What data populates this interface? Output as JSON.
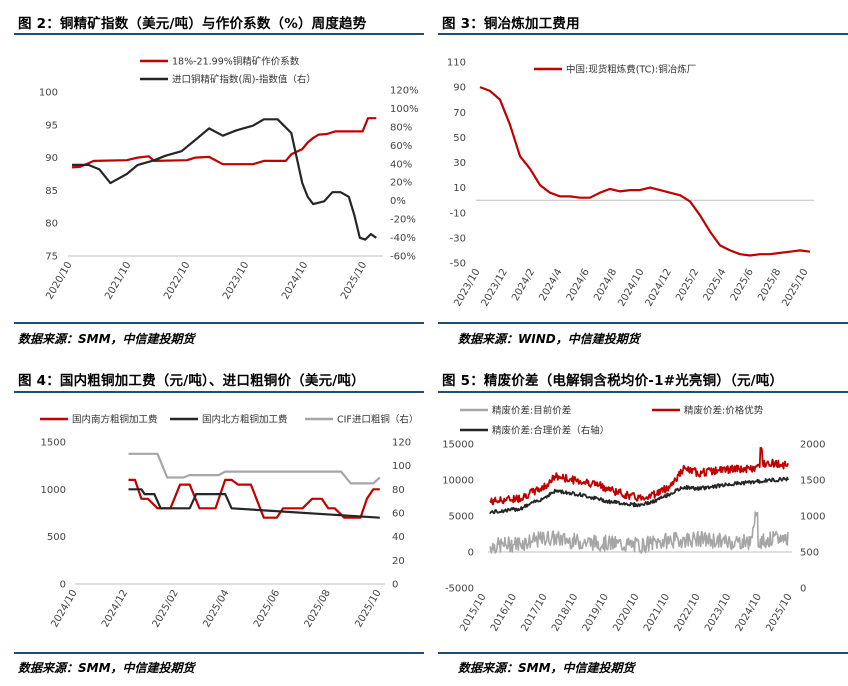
{
  "charts": [
    {
      "panel_title": "图 2：铜精矿指数（美元/吨）与作价系数（%）周度趋势",
      "source": "数据来源：SMM，中信建投期货",
      "chart_data": {
        "type": "line",
        "x_ticks": [
          "2020/10",
          "2021/10",
          "2022/10",
          "2023/10",
          "2024/10",
          "2025/10"
        ],
        "y_left": {
          "range": [
            75,
            100
          ],
          "ticks": [
            "75",
            "80",
            "85",
            "90",
            "95",
            "100"
          ]
        },
        "y_right": {
          "range": [
            -60,
            120
          ],
          "ticks": [
            "-60%",
            "-40%",
            "-20%",
            "0%",
            "20%",
            "40%",
            "60%",
            "80%",
            "100%",
            "120%"
          ]
        },
        "series": [
          {
            "name": "18%-21.99%铜精矿作价系数",
            "axis": "left",
            "color": "#c00000",
            "points": [
              [
                0,
                88.5
              ],
              [
                0.03,
                88.6
              ],
              [
                0.08,
                89.5
              ],
              [
                0.2,
                89.6
              ],
              [
                0.24,
                90
              ],
              [
                0.28,
                90.2
              ],
              [
                0.3,
                89.5
              ],
              [
                0.42,
                89.6
              ],
              [
                0.45,
                90
              ],
              [
                0.5,
                90.1
              ],
              [
                0.55,
                89
              ],
              [
                0.66,
                89
              ],
              [
                0.7,
                89.5
              ],
              [
                0.78,
                89.5
              ],
              [
                0.8,
                90.5
              ],
              [
                0.84,
                91.3
              ],
              [
                0.86,
                92.3
              ],
              [
                0.88,
                93
              ],
              [
                0.9,
                93.5
              ],
              [
                0.93,
                93.6
              ],
              [
                0.96,
                94
              ],
              [
                1.0,
                94
              ],
              [
                1.03,
                94
              ],
              [
                1.06,
                94
              ],
              [
                1.08,
                96
              ],
              [
                1.11,
                96
              ]
            ]
          },
          {
            "name": "进口铜精矿指数(周)-指数值（右）",
            "axis": "right",
            "color": "#262626",
            "points": [
              [
                0,
                40
              ],
              [
                0.06,
                40
              ],
              [
                0.1,
                35
              ],
              [
                0.14,
                20
              ],
              [
                0.2,
                30
              ],
              [
                0.24,
                40
              ],
              [
                0.3,
                45
              ],
              [
                0.34,
                50
              ],
              [
                0.4,
                55
              ],
              [
                0.46,
                70
              ],
              [
                0.5,
                80
              ],
              [
                0.55,
                72
              ],
              [
                0.6,
                78
              ],
              [
                0.66,
                83
              ],
              [
                0.7,
                90
              ],
              [
                0.75,
                90
              ],
              [
                0.8,
                75
              ],
              [
                0.84,
                20
              ],
              [
                0.86,
                5
              ],
              [
                0.88,
                -3
              ],
              [
                0.92,
                0
              ],
              [
                0.95,
                10
              ],
              [
                0.98,
                10
              ],
              [
                1.01,
                5
              ],
              [
                1.03,
                -15
              ],
              [
                1.05,
                -40
              ],
              [
                1.07,
                -42
              ],
              [
                1.09,
                -36
              ],
              [
                1.11,
                -40
              ]
            ]
          }
        ]
      }
    },
    {
      "panel_title": "图 3：铜冶炼加工费用",
      "source": "数据来源：WIND，中信建投期货",
      "chart_data": {
        "type": "line",
        "x_ticks": [
          "2023/10",
          "2023/12",
          "2024/2",
          "2024/4",
          "2024/6",
          "2024/8",
          "2024/10",
          "2024/12",
          "2025/2",
          "2025/4",
          "2025/6",
          "2025/8",
          "2025/10"
        ],
        "y": {
          "range": [
            -50,
            110
          ],
          "ticks": [
            "-50",
            "-30",
            "-10",
            "10",
            "30",
            "50",
            "70",
            "90",
            "110"
          ]
        },
        "series": [
          {
            "name": "中国:现货粗炼费(TC):铜冶炼厂",
            "color": "#c00000",
            "points": [
              [
                0,
                90
              ],
              [
                0.5,
                87
              ],
              [
                1,
                80
              ],
              [
                1.5,
                60
              ],
              [
                2,
                35
              ],
              [
                2.5,
                25
              ],
              [
                3,
                12
              ],
              [
                3.5,
                6
              ],
              [
                4,
                3
              ],
              [
                4.5,
                3
              ],
              [
                5,
                2
              ],
              [
                5.5,
                2
              ],
              [
                6,
                6
              ],
              [
                6.5,
                9
              ],
              [
                7,
                7
              ],
              [
                7.5,
                8
              ],
              [
                8,
                8
              ],
              [
                8.5,
                10
              ],
              [
                9,
                8
              ],
              [
                9.5,
                6
              ],
              [
                10,
                4
              ],
              [
                10.5,
                -1
              ],
              [
                11,
                -12
              ],
              [
                11.5,
                -25
              ],
              [
                12,
                -36
              ],
              [
                12.5,
                -40
              ],
              [
                13,
                -43
              ],
              [
                13.5,
                -44
              ],
              [
                14,
                -43
              ],
              [
                14.5,
                -43
              ],
              [
                15,
                -42
              ],
              [
                15.5,
                -41
              ],
              [
                16,
                -40
              ],
              [
                16.5,
                -41
              ]
            ]
          }
        ]
      }
    },
    {
      "panel_title": "图 4：国内粗铜加工费（元/吨）、进口粗铜价（美元/吨）",
      "source": "数据来源：SMM，中信建投期货",
      "chart_data": {
        "type": "line",
        "x_ticks": [
          "2024/10",
          "2024/12",
          "2025/02",
          "2025/04",
          "2025/06",
          "2025/08",
          "2025/10"
        ],
        "y_left": {
          "range": [
            0,
            1500
          ],
          "ticks": [
            "0",
            "500",
            "1000",
            "1500"
          ]
        },
        "y_right": {
          "range": [
            0,
            120
          ],
          "ticks": [
            "0",
            "20",
            "40",
            "60",
            "80",
            "100",
            "120"
          ]
        },
        "series": [
          {
            "name": "国内南方粗铜加工费",
            "axis": "left",
            "color": "#c00000",
            "points": [
              [
                1.6,
                1100
              ],
              [
                1.8,
                1100
              ],
              [
                2.0,
                900
              ],
              [
                2.2,
                900
              ],
              [
                2.5,
                800
              ],
              [
                2.9,
                800
              ],
              [
                3.2,
                1050
              ],
              [
                3.5,
                1050
              ],
              [
                3.8,
                800
              ],
              [
                4.3,
                800
              ],
              [
                4.6,
                1100
              ],
              [
                4.8,
                1100
              ],
              [
                5.0,
                1050
              ],
              [
                5.4,
                1050
              ],
              [
                5.8,
                700
              ],
              [
                6.2,
                700
              ],
              [
                6.4,
                800
              ],
              [
                7.0,
                800
              ],
              [
                7.3,
                900
              ],
              [
                7.6,
                900
              ],
              [
                7.8,
                800
              ],
              [
                8.0,
                800
              ],
              [
                8.3,
                700
              ],
              [
                8.8,
                700
              ],
              [
                9.0,
                900
              ],
              [
                9.2,
                1000
              ],
              [
                9.4,
                1000
              ]
            ]
          },
          {
            "name": "国内北方粗铜加工费",
            "axis": "left",
            "color": "#262626",
            "points": [
              [
                1.6,
                1000
              ],
              [
                2.0,
                1000
              ],
              [
                2.1,
                950
              ],
              [
                2.4,
                950
              ],
              [
                2.6,
                800
              ],
              [
                3.5,
                800
              ],
              [
                3.7,
                950
              ],
              [
                4.6,
                950
              ],
              [
                4.8,
                800
              ],
              [
                9.4,
                700
              ]
            ]
          },
          {
            "name": "CIF进口粗铜（右）",
            "axis": "right",
            "color": "#a6a6a6",
            "points": [
              [
                1.6,
                110
              ],
              [
                2.5,
                110
              ],
              [
                2.8,
                90
              ],
              [
                3.3,
                90
              ],
              [
                3.5,
                92
              ],
              [
                4.4,
                92
              ],
              [
                4.6,
                95
              ],
              [
                8.2,
                95
              ],
              [
                8.5,
                85
              ],
              [
                9.2,
                85
              ],
              [
                9.4,
                90
              ]
            ]
          }
        ]
      }
    },
    {
      "panel_title": "图 5：精废价差（电解铜含税均价-1#光亮铜）（元/吨）",
      "source": "数据来源：SMM，中信建投期货",
      "chart_data": {
        "type": "line",
        "x_ticks": [
          "2015/10",
          "2016/10",
          "2017/10",
          "2018/10",
          "2019/10",
          "2020/10",
          "2021/10",
          "2022/10",
          "2023/10",
          "2024/10",
          "2025/10"
        ],
        "y_left": {
          "range": [
            -5000,
            15000
          ],
          "ticks": [
            "-5000",
            "0",
            "5000",
            "10000",
            "15000"
          ]
        },
        "y_right": {
          "range": [
            0,
            2000
          ],
          "ticks": [
            "0",
            "500",
            "1000",
            "1500",
            "2000"
          ]
        },
        "series": [
          {
            "name": "精废价差:目前价差",
            "axis": "left",
            "color": "#a6a6a6"
          },
          {
            "name": "精废价差:价格优势",
            "axis": "left",
            "color": "#c00000"
          },
          {
            "name": "精废价差:合理价差（右轴）",
            "axis": "right",
            "color": "#262626"
          }
        ]
      }
    }
  ]
}
